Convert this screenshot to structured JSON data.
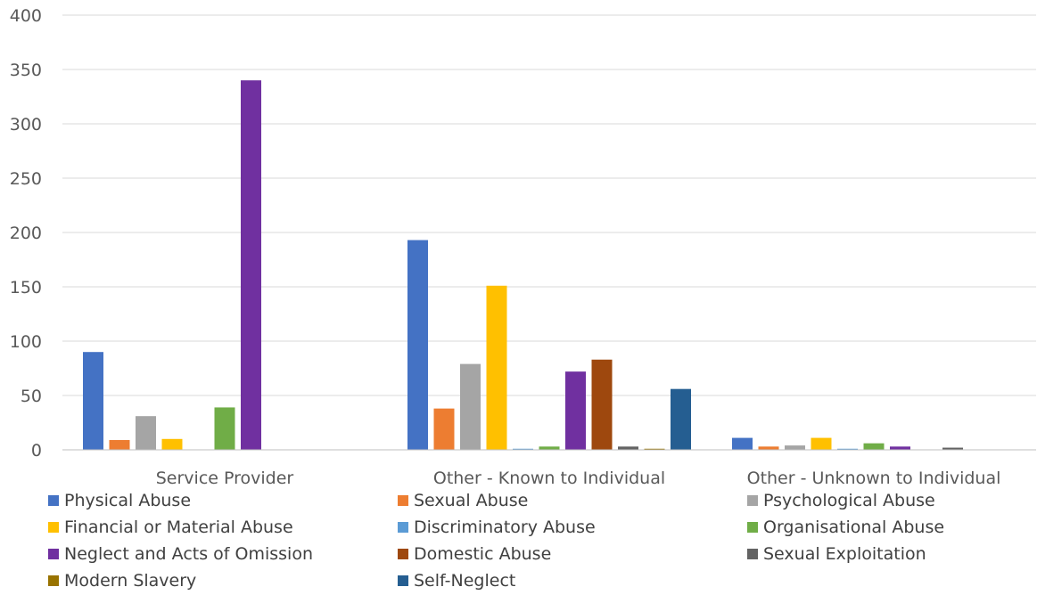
{
  "chart_data": {
    "type": "bar",
    "title": "",
    "xlabel": "",
    "ylabel": "",
    "ylim": [
      0,
      400
    ],
    "yticks": [
      0,
      50,
      100,
      150,
      200,
      250,
      300,
      350,
      400
    ],
    "grid": true,
    "legend_position": "bottom",
    "categories": [
      "Service Provider",
      "Other - Known to Individual",
      "Other - Unknown to Individual"
    ],
    "series": [
      {
        "name": "Physical Abuse",
        "color": "#4472C4",
        "values": [
          90,
          193,
          11
        ]
      },
      {
        "name": "Sexual Abuse",
        "color": "#ED7D31",
        "values": [
          9,
          38,
          3
        ]
      },
      {
        "name": "Psychological Abuse",
        "color": "#A5A5A5",
        "values": [
          31,
          79,
          4
        ]
      },
      {
        "name": "Financial or Material Abuse",
        "color": "#FFC000",
        "values": [
          10,
          151,
          11
        ]
      },
      {
        "name": "Discriminatory Abuse",
        "color": "#5B9BD5",
        "values": [
          0,
          1,
          1
        ]
      },
      {
        "name": "Organisational Abuse",
        "color": "#70AD47",
        "values": [
          39,
          3,
          6
        ]
      },
      {
        "name": "Neglect and Acts of Omission",
        "color": "#7030A0",
        "values": [
          340,
          72,
          3
        ]
      },
      {
        "name": "Domestic Abuse",
        "color": "#9E480E",
        "values": [
          0,
          83,
          0
        ]
      },
      {
        "name": "Sexual Exploitation",
        "color": "#636363",
        "values": [
          0,
          3,
          2
        ]
      },
      {
        "name": "Modern Slavery",
        "color": "#997300",
        "values": [
          0,
          1,
          0
        ]
      },
      {
        "name": "Self-Neglect",
        "color": "#255E91",
        "values": [
          0,
          56,
          0
        ]
      }
    ]
  }
}
